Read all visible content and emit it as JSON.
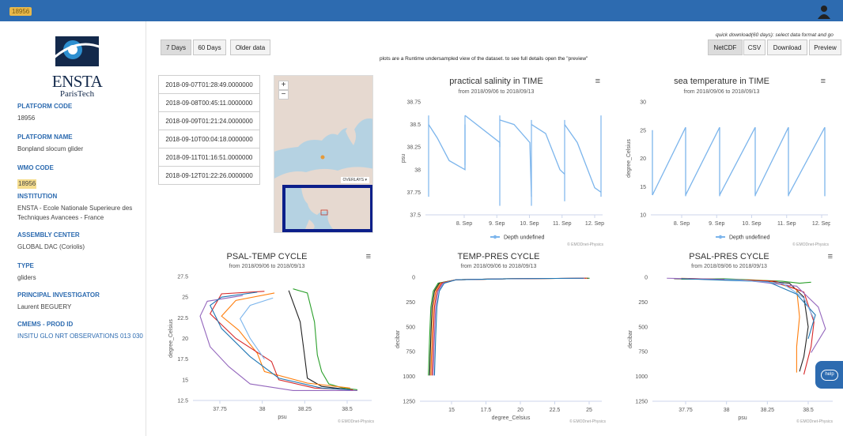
{
  "header": {
    "badge": "18956"
  },
  "sidebar": {
    "fields": [
      {
        "label": "PLATFORM CODE",
        "value": "18956"
      },
      {
        "label": "PLATFORM NAME",
        "value": "Bonpland slocum glider"
      },
      {
        "label": "WMO CODE",
        "value": "18956"
      },
      {
        "label": "INSTITUTION",
        "value": "ENSTA - Ecole Nationale Superieure des Techniques Avancees - France"
      },
      {
        "label": "ASSEMBLY CENTER",
        "value": "GLOBAL DAC (Coriolis)"
      },
      {
        "label": "TYPE",
        "value": "gliders"
      },
      {
        "label": "PRINCIPAL INVESTIGATOR",
        "value": "Laurent BEGUERY"
      },
      {
        "label": "CMEMS - PROD ID",
        "value": "INSITU GLO NRT OBSERVATIONS 013 030"
      }
    ],
    "logo_text": "ENSTA",
    "logo_sub": "ParisTech"
  },
  "toolbar": {
    "range_tabs": [
      "7 Days",
      "60 Days"
    ],
    "older": "Older data",
    "download_note": "quick download(60 days): select data format and go",
    "formats": [
      "NetCDF",
      "CSV"
    ],
    "download": "Download",
    "preview": "Preview"
  },
  "plot_note": "plots are a Runtime undersampled view of the dataset. to see full details open the \"preview\"",
  "dates": [
    "2018-09-07T01:28:49.0000000",
    "2018-09-08T00:45:11.0000000",
    "2018-09-09T01:21:24.0000000",
    "2018-09-10T00:04:18.0000000",
    "2018-09-11T01:16:51.0000000",
    "2018-09-12T01:22:26.0000000"
  ],
  "map": {
    "zoom_in": "+",
    "zoom_out": "−",
    "overlays": "OVERLAYS ▾"
  },
  "help": "help",
  "credit": "© EMODnet-Physics",
  "chart_data": [
    {
      "type": "line",
      "title": "practical salinity in TIME",
      "subtitle": "from 2018/09/06 to 2018/09/13",
      "ylabel": "psu",
      "ylim": [
        37.5,
        38.75
      ],
      "yticks": [
        "38.75",
        "38.5",
        "38.25",
        "38",
        "37.75",
        "37.5"
      ],
      "xticks": [
        "8. Sep",
        "9. Sep",
        "10. Sep",
        "11. Sep",
        "12. Sep"
      ],
      "legend": "Depth undefined",
      "series_color": "#7cb5ec"
    },
    {
      "type": "line",
      "title": "sea temperature in TIME",
      "subtitle": "from 2018/09/06 to 2018/09/13",
      "ylabel": "degree_Celsius",
      "ylim": [
        10,
        30
      ],
      "yticks": [
        "30",
        "25",
        "20",
        "15",
        "10"
      ],
      "xticks": [
        "8. Sep",
        "9. Sep",
        "10. Sep",
        "11. Sep",
        "12. Sep"
      ],
      "legend": "Depth undefined",
      "series_color": "#7cb5ec"
    },
    {
      "type": "line",
      "title": "PSAL-TEMP CYCLE",
      "subtitle": "from 2018/09/06 to 2018/09/13",
      "xlabel": "psu",
      "ylabel": "degree_Celsius",
      "xlim": [
        37.5,
        38.75
      ],
      "ylim": [
        12.5,
        27.5
      ],
      "xticks": [
        "37.75",
        "38",
        "38.25",
        "38.5"
      ],
      "yticks": [
        "27.5",
        "25",
        "22.5",
        "20",
        "17.5",
        "15",
        "12.5"
      ]
    },
    {
      "type": "line",
      "title": "TEMP-PRES CYCLE",
      "subtitle": "from 2018/09/06 to 2018/09/13",
      "xlabel": "degree_Celsius",
      "ylabel": "decibar",
      "xlim": [
        12.5,
        27.5
      ],
      "ylim": [
        0,
        1250
      ],
      "xticks": [
        "15",
        "17.5",
        "20",
        "22.5",
        "25"
      ],
      "yticks": [
        "0",
        "250",
        "500",
        "750",
        "1000",
        "1250"
      ]
    },
    {
      "type": "line",
      "title": "PSAL-PRES CYCLE",
      "subtitle": "from 2018/09/06 to 2018/09/13",
      "xlabel": "psu",
      "ylabel": "decibar",
      "xlim": [
        37.5,
        38.75
      ],
      "ylim": [
        0,
        1250
      ],
      "xticks": [
        "37.75",
        "38",
        "38.25",
        "38.5"
      ],
      "yticks": [
        "0",
        "250",
        "500",
        "750",
        "1000",
        "1250"
      ]
    }
  ]
}
